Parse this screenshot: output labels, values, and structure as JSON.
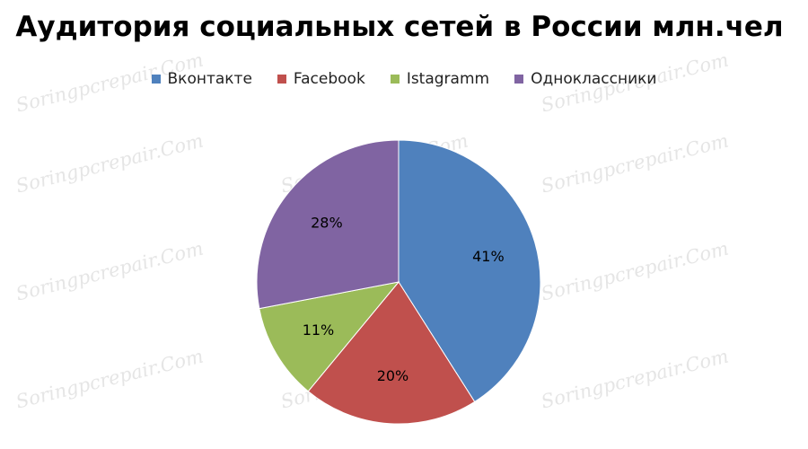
{
  "chart_data": {
    "type": "pie",
    "title": "Аудитория социальных сетей в России млн.чел",
    "categories": [
      "Вконтакте",
      "Facebook",
      "Istagramm",
      "Одноклассники"
    ],
    "values": [
      41,
      20,
      11,
      28
    ],
    "labels": [
      "41%",
      "20%",
      "11%",
      "28%"
    ],
    "colors": [
      "#4F81BD",
      "#C0504D",
      "#9BBB59",
      "#8064A2"
    ],
    "legend_position": "top"
  },
  "watermark": "Soringpcrepair.Com"
}
